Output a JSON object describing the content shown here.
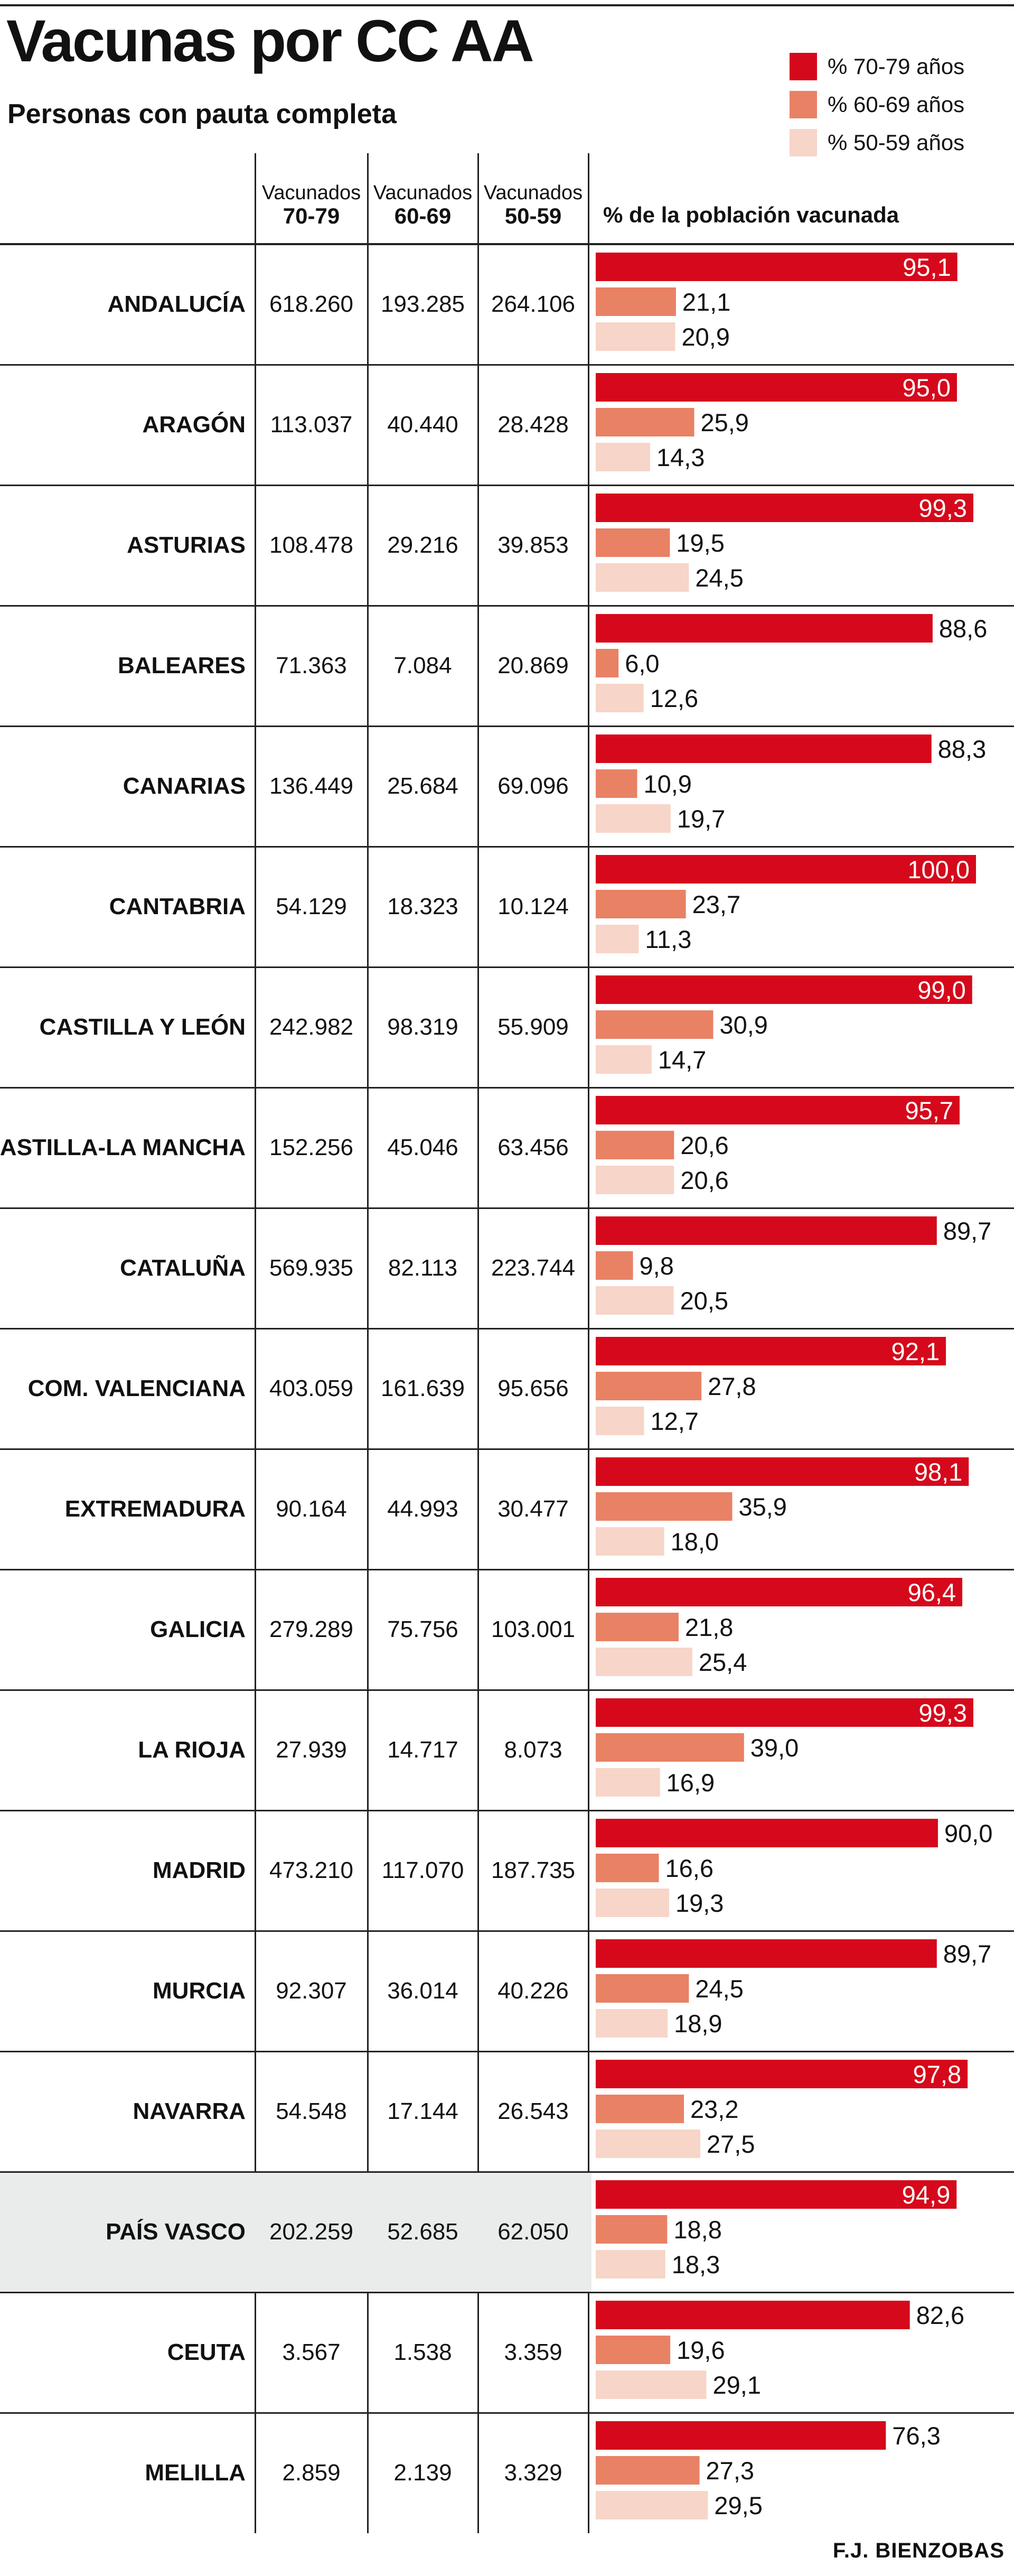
{
  "title": "Vacunas por CC AA",
  "subtitle": "Personas con pauta completa",
  "credit": "F.J. BIENZOBAS",
  "table_headers": [
    {
      "line1": "Vacunados",
      "line2": "70-79"
    },
    {
      "line1": "Vacunados",
      "line2": "60-69"
    },
    {
      "line1": "Vacunados",
      "line2": "50-59"
    }
  ],
  "bars_header": "% de la población vacunada",
  "colors": {
    "series_70_79": "#d5091b",
    "series_60_69": "#e98165",
    "series_50_59": "#f7d5c8",
    "highlight_row": "#eaecec",
    "rule": "#222222"
  },
  "chart_data": {
    "type": "bar",
    "orientation": "horizontal",
    "title": "Vacunas por CC AA",
    "subtitle": "Personas con pauta completa",
    "xlabel": "% de la población vacunada",
    "xlim": [
      0,
      100
    ],
    "legend_position": "top-right",
    "grid": false,
    "highlight_category": "PAÍS VASCO",
    "categories": [
      "ANDALUCÍA",
      "ARAGÓN",
      "ASTURIAS",
      "BALEARES",
      "CANARIAS",
      "CANTABRIA",
      "CASTILLA Y LEÓN",
      "CASTILLA-LA MANCHA",
      "CATALUÑA",
      "COM. VALENCIANA",
      "EXTREMADURA",
      "GALICIA",
      "LA RIOJA",
      "MADRID",
      "MURCIA",
      "NAVARRA",
      "PAÍS VASCO",
      "CEUTA",
      "MELILLA"
    ],
    "series": [
      {
        "name": "% 70-79 años",
        "color": "#d5091b",
        "values": [
          95.1,
          95.0,
          99.3,
          88.6,
          88.3,
          100.0,
          99.0,
          95.7,
          89.7,
          92.1,
          98.1,
          96.4,
          99.3,
          90.0,
          89.7,
          97.8,
          94.9,
          82.6,
          76.3
        ],
        "labels": [
          "95,1",
          "95,0",
          "99,3",
          "88,6",
          "88,3",
          "100,0",
          "99,0",
          "95,7",
          "89,7",
          "92,1",
          "98,1",
          "96,4",
          "99,3",
          "90,0",
          "89,7",
          "97,8",
          "94,9",
          "82,6",
          "76,3"
        ]
      },
      {
        "name": "% 60-69 años",
        "color": "#e98165",
        "values": [
          21.1,
          25.9,
          19.5,
          6.0,
          10.9,
          23.7,
          30.9,
          20.6,
          9.8,
          27.8,
          35.9,
          21.8,
          39.0,
          16.6,
          24.5,
          23.2,
          18.8,
          19.6,
          27.3
        ],
        "labels": [
          "21,1",
          "25,9",
          "19,5",
          "6,0",
          "10,9",
          "23,7",
          "30,9",
          "20,6",
          "9,8",
          "27,8",
          "35,9",
          "21,8",
          "39,0",
          "16,6",
          "24,5",
          "23,2",
          "18,8",
          "19,6",
          "27,3"
        ]
      },
      {
        "name": "% 50-59 años",
        "color": "#f7d5c8",
        "values": [
          20.9,
          14.3,
          24.5,
          12.6,
          19.7,
          11.3,
          14.7,
          20.6,
          20.5,
          12.7,
          18.0,
          25.4,
          16.9,
          19.3,
          18.9,
          27.5,
          18.3,
          29.1,
          29.5
        ],
        "labels": [
          "20,9",
          "14,3",
          "24,5",
          "12,6",
          "19,7",
          "11,3",
          "14,7",
          "20,6",
          "20,5",
          "12,7",
          "18,0",
          "25,4",
          "16,9",
          "19,3",
          "18,9",
          "27,5",
          "18,3",
          "29,1",
          "29,5"
        ]
      }
    ],
    "table": {
      "columns": [
        "Vacunados 70-79",
        "Vacunados 60-69",
        "Vacunados 50-59"
      ],
      "rows": [
        [
          "618.260",
          "193.285",
          "264.106"
        ],
        [
          "113.037",
          "40.440",
          "28.428"
        ],
        [
          "108.478",
          "29.216",
          "39.853"
        ],
        [
          "71.363",
          "7.084",
          "20.869"
        ],
        [
          "136.449",
          "25.684",
          "69.096"
        ],
        [
          "54.129",
          "18.323",
          "10.124"
        ],
        [
          "242.982",
          "98.319",
          "55.909"
        ],
        [
          "152.256",
          "45.046",
          "63.456"
        ],
        [
          "569.935",
          "82.113",
          "223.744"
        ],
        [
          "403.059",
          "161.639",
          "95.656"
        ],
        [
          "90.164",
          "44.993",
          "30.477"
        ],
        [
          "279.289",
          "75.756",
          "103.001"
        ],
        [
          "27.939",
          "14.717",
          "8.073"
        ],
        [
          "473.210",
          "117.070",
          "187.735"
        ],
        [
          "92.307",
          "36.014",
          "40.226"
        ],
        [
          "54.548",
          "17.144",
          "26.543"
        ],
        [
          "202.259",
          "52.685",
          "62.050"
        ],
        [
          "3.567",
          "1.538",
          "3.359"
        ],
        [
          "2.859",
          "2.139",
          "3.329"
        ]
      ]
    }
  }
}
